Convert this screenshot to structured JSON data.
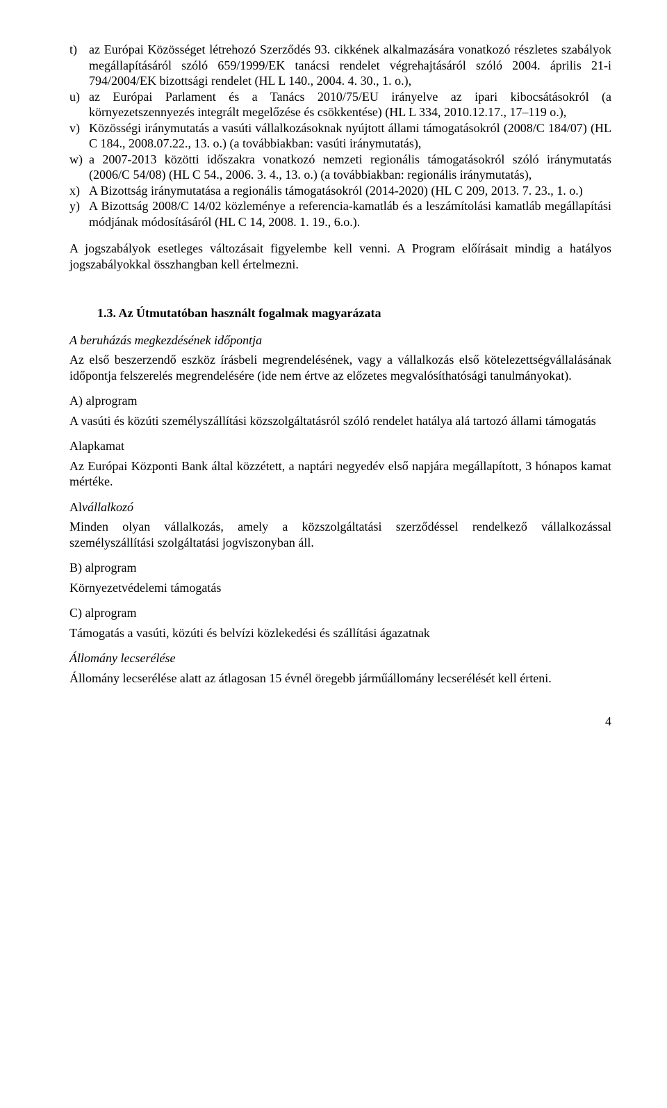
{
  "list": {
    "t": {
      "marker": "t)",
      "text": "az Európai Közösséget létrehozó Szerződés 93. cikkének alkalmazására vonatkozó részletes szabályok megállapításáról szóló 659/1999/EK tanácsi rendelet végrehajtásáról szóló 2004. április 21-i 794/2004/EK bizottsági rendelet (HL L 140., 2004. 4. 30., 1. o.),"
    },
    "u": {
      "marker": "u)",
      "text": "az Európai Parlament és a Tanács 2010/75/EU irányelve az ipari kibocsátásokról (a környezetszennyezés integrált megelőzése és csökkentése) (HL L 334, 2010.12.17., 17–119 o.),"
    },
    "v": {
      "marker": "v)",
      "text": "Közösségi iránymutatás a vasúti vállalkozásoknak nyújtott állami támogatásokról (2008/C 184/07) (HL C 184., 2008.07.22., 13. o.) (a továbbiakban: vasúti iránymutatás),"
    },
    "w": {
      "marker": "w)",
      "text": "a 2007-2013 közötti időszakra vonatkozó nemzeti regionális támogatásokról szóló iránymutatás (2006/C 54/08) (HL C 54., 2006. 3. 4., 13. o.) (a továbbiakban: regionális iránymutatás),"
    },
    "x": {
      "marker": "x)",
      "text": "A Bizottság iránymutatása a regionális támogatásokról (2014-2020) (HL C 209, 2013. 7. 23., 1. o.)"
    },
    "y": {
      "marker": "y)",
      "text": "A Bizottság 2008/C 14/02 közleménye a referencia-kamatláb és a leszámítolási kamatláb megállapítási módjának módosításáról (HL C 14, 2008. 1. 19., 6.o.)."
    }
  },
  "closing_para": "A jogszabályok esetleges változásait figyelembe kell venni. A Program előírásait mindig a hatályos jogszabályokkal összhangban kell értelmezni.",
  "section_heading": "1.3. Az Útmutatóban használt fogalmak magyarázata",
  "defs": {
    "d1": {
      "term": "A beruházás megkezdésének időpontja",
      "def": "Az első beszerzendő eszköz írásbeli megrendelésének, vagy a vállalkozás első kötelezettségvállalásának időpontja felszerelés megrendelésére (ide nem értve az előzetes megvalósíthatósági tanulmányokat)."
    },
    "d2": {
      "term": "A) alprogram",
      "def": "A vasúti és közúti személyszállítási közszolgáltatásról szóló rendelet hatálya alá tartozó állami támogatás"
    },
    "d3": {
      "term": "Alapkamat",
      "def": "Az Európai Központi Bank által közzétett, a naptári negyedév első napjára megállapított, 3 hónapos kamat mértéke."
    },
    "d4": {
      "term_prefix": "Al",
      "term_italic": "vállalkozó",
      "def": "Minden olyan vállalkozás, amely a közszolgáltatási szerződéssel rendelkező vállalkozással személyszállítási szolgáltatási jogviszonyban áll."
    },
    "d5": {
      "term": "B) alprogram",
      "def": "Környezetvédelemi támogatás"
    },
    "d6": {
      "term": "C) alprogram",
      "def": "Támogatás a vasúti, közúti és belvízi közlekedési és szállítási ágazatnak"
    },
    "d7": {
      "term": "Állomány lecserélése",
      "def": "Állomány lecserélése alatt az átlagosan 15 évnél öregebb járműállomány lecserélését kell érteni."
    }
  },
  "page_number": "4"
}
